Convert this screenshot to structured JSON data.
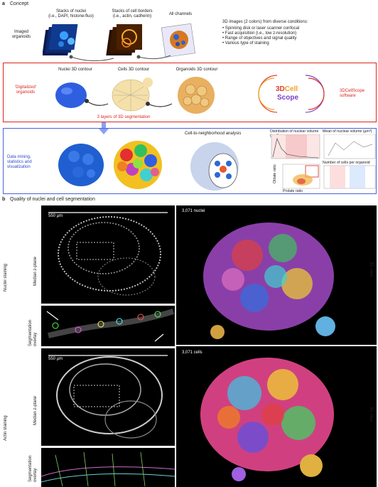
{
  "panel_a": {
    "letter": "a",
    "title": "Concept",
    "imaged_organoids": "Imaged\norganoids",
    "stack_nuclei": "Stacks of nuclei\n(i.e., DAPI, histone-fluo)",
    "stack_borders": "Stacks of cell borders\n(i.e., actin, cadherin)",
    "all_channels": "All channels",
    "conditions_title": "3D images (2 colors) from diverse conditions:",
    "conditions": [
      "Spinning disk or laser scanner confocal",
      "Fast acquisition (i.e., low z-resolution)",
      "Range of objectives and signal quality",
      "Various type of staining"
    ],
    "digitalized": "'Digitalized'\norganoids",
    "nuclei_contour": "Nuclei 3D contour",
    "cells_contour": "Cells 3D contour",
    "organoids_contour": "Organoids 3D contour",
    "three_layers": "3 layers of 3D segmentation",
    "software": "3DCellScope\nsoftware",
    "logo_3d": "3D",
    "logo_cell": "Cell",
    "logo_scope": "Scope",
    "data_mining": "Data mining,\nstatistics and\nvisualization",
    "neighborhood": "Cell-to-neighborhood analysis",
    "mini_chart1_title": "Distribution of nuclear volume (µm³)",
    "mini_chart2_title": "Mean of nuclear volume (µm³)",
    "mini_chart3_title": "Number of cells per organoid",
    "mini_scatter_x": "Prolate ratio",
    "mini_scatter_y": "Oblate ratio"
  },
  "panel_b": {
    "letter": "b",
    "title": "Quality of nuclei and cell segmentation",
    "scale_top": "550 µm",
    "scale_bottom": "550 µm",
    "nuclei_staining": "Nuclei staining",
    "actin_staining": "Actin staining",
    "median_z_1": "Median z-plane",
    "median_z_2": "Median z-plane",
    "seg_overlay_1": "Segmentation\noverlay",
    "seg_overlay_2": "Segmentation\noverlay",
    "count_nuclei": "3,071 nuclei",
    "count_cells": "3,071 cells",
    "view_3d_1": "3D view",
    "view_3d_2": "3D view"
  },
  "colors": {
    "red_box": "#d9261c",
    "blue_box": "#4a62d8",
    "logo_red": "#e03a2a",
    "logo_orange": "#f0a020",
    "logo_purple": "#7a3fc8"
  }
}
